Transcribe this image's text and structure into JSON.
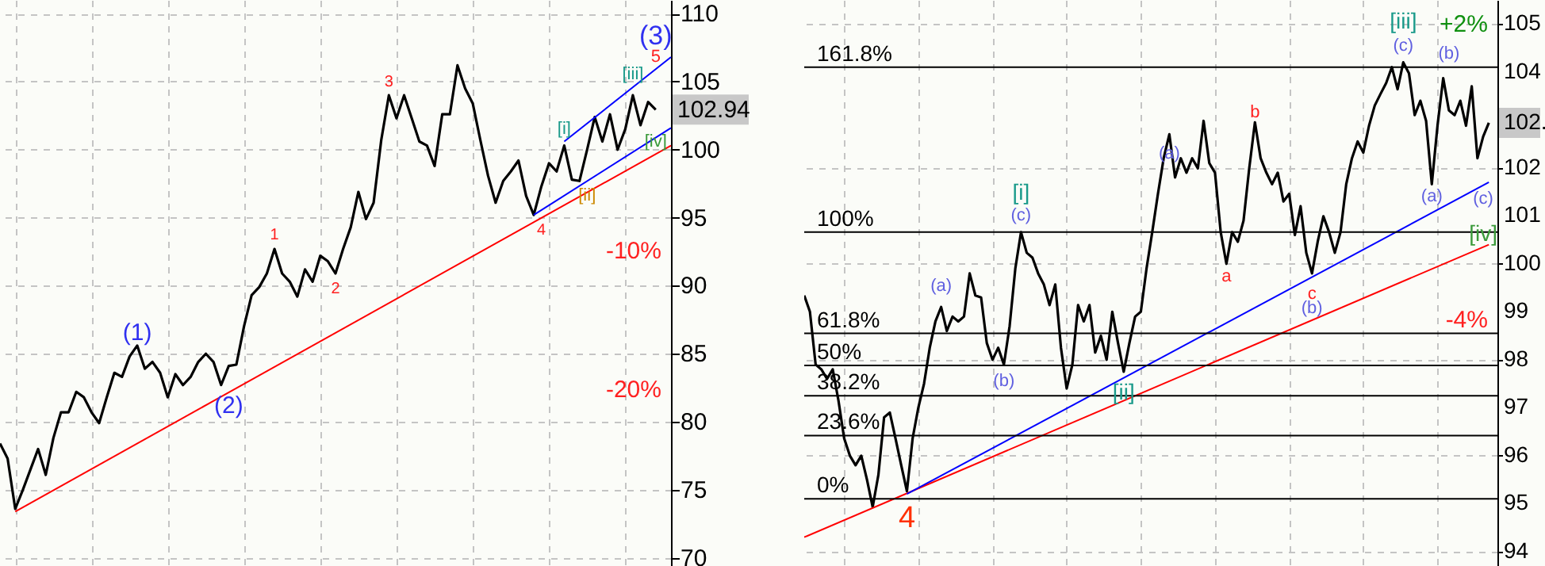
{
  "chart_data": [
    {
      "type": "line",
      "categories": [
        null,
        null,
        null,
        null,
        null,
        null,
        null,
        null,
        null,
        null,
        null,
        null,
        null,
        null,
        null,
        null,
        null,
        null,
        null,
        null,
        null,
        null,
        null,
        null,
        null,
        null,
        null,
        null,
        null,
        null,
        null,
        null,
        null,
        null,
        null,
        null,
        null,
        null,
        null,
        null,
        null,
        null,
        null,
        null,
        null,
        null,
        null,
        null,
        null,
        null,
        null,
        null,
        null,
        null,
        null,
        null,
        null,
        null,
        null,
        null,
        null,
        null,
        null,
        null,
        null,
        null,
        null,
        null,
        null,
        null,
        null,
        null,
        null,
        null,
        null,
        null,
        null,
        null,
        null,
        null,
        null,
        null,
        null,
        null,
        null,
        null,
        null,
        null,
        null
      ],
      "series": [
        {
          "color": "#000000",
          "values": [
            78.4,
            77.3,
            73.6,
            75,
            76.5,
            78,
            76.1,
            78.8,
            80.7,
            80.7,
            82.2,
            81.8,
            80.7,
            79.9,
            81.8,
            83.6,
            83.3,
            84.8,
            85.6,
            83.9,
            84.4,
            83.6,
            81.8,
            83.5,
            82.7,
            83.3,
            84.4,
            85,
            84.4,
            82.7,
            84.1,
            84.2,
            87,
            89.3,
            89.9,
            90.9,
            92.7,
            90.9,
            90.3,
            89.2,
            91.2,
            90.3,
            92.2,
            91.8,
            90.9,
            92.7,
            94.3,
            96.9,
            94.9,
            96.1,
            100.7,
            104,
            102.3,
            104,
            102.3,
            100.6,
            100.3,
            98.8,
            102.6,
            102.6,
            106.2,
            104.5,
            103.4,
            100.7,
            98.1,
            96.1,
            97.7,
            98.4,
            99.2,
            96.6,
            95.2,
            97.3,
            99,
            98.4,
            100.3,
            97.8,
            97.7,
            100,
            102.4,
            100.6,
            102.6,
            100,
            101.5,
            104,
            101.8,
            103.5,
            102.94,
            null,
            null
          ]
        },
        {
          "color": "#ff0000",
          "values": [
            null,
            null,
            73.4,
            null,
            null,
            null,
            null,
            null,
            null,
            null,
            null,
            null,
            null,
            null,
            null,
            null,
            null,
            null,
            null,
            null,
            null,
            null,
            null,
            null,
            null,
            null,
            null,
            null,
            null,
            null,
            null,
            null,
            null,
            null,
            null,
            null,
            null,
            null,
            null,
            null,
            null,
            null,
            null,
            null,
            null,
            null,
            null,
            null,
            null,
            null,
            null,
            null,
            null,
            null,
            null,
            null,
            null,
            null,
            null,
            null,
            null,
            null,
            null,
            null,
            null,
            null,
            null,
            null,
            null,
            null,
            null,
            null,
            null,
            null,
            null,
            null,
            null,
            null,
            null,
            null,
            null,
            null,
            null,
            null,
            null,
            null,
            null,
            null,
            100.3
          ]
        },
        {
          "color": "#0000ff",
          "values": [
            null,
            null,
            null,
            null,
            null,
            null,
            null,
            null,
            null,
            null,
            null,
            null,
            null,
            null,
            null,
            null,
            null,
            null,
            null,
            null,
            null,
            null,
            null,
            null,
            null,
            null,
            null,
            null,
            null,
            null,
            null,
            null,
            null,
            null,
            null,
            null,
            null,
            null,
            null,
            null,
            null,
            null,
            null,
            null,
            null,
            null,
            null,
            null,
            null,
            null,
            null,
            null,
            null,
            null,
            null,
            null,
            null,
            null,
            null,
            null,
            null,
            null,
            null,
            null,
            null,
            null,
            null,
            null,
            null,
            null,
            95.2,
            null,
            null,
            null,
            null,
            null,
            null,
            null,
            null,
            null,
            null,
            null,
            null,
            null,
            null,
            null,
            null,
            null,
            101.6
          ]
        },
        {
          "color": "#0000ff",
          "values": [
            null,
            null,
            null,
            null,
            null,
            null,
            null,
            null,
            null,
            null,
            null,
            null,
            null,
            null,
            null,
            null,
            null,
            null,
            null,
            null,
            null,
            null,
            null,
            null,
            null,
            null,
            null,
            null,
            null,
            null,
            null,
            null,
            null,
            null,
            null,
            null,
            null,
            null,
            null,
            null,
            null,
            null,
            null,
            null,
            null,
            null,
            null,
            null,
            null,
            null,
            null,
            null,
            null,
            null,
            null,
            null,
            null,
            null,
            null,
            null,
            null,
            null,
            null,
            null,
            null,
            null,
            null,
            null,
            null,
            null,
            null,
            null,
            null,
            null,
            100.6,
            null,
            null,
            null,
            null,
            null,
            null,
            null,
            null,
            null,
            null,
            null,
            null,
            null,
            106.8
          ]
        }
      ],
      "ylim": [
        69.4,
        111
      ],
      "yticks": [
        70,
        75,
        80,
        85,
        90,
        95,
        100,
        105,
        110
      ],
      "grid": true,
      "tick_labels": "y",
      "annotations": [
        "(1)",
        "(2)",
        "1",
        "2",
        "3",
        "4",
        "5",
        "(3)",
        "[i]",
        "[ii]",
        "[iii]",
        "[iv]",
        "-10%",
        "-20%",
        "102.94"
      ]
    },
    {
      "type": "line",
      "categories": [
        null,
        null,
        null,
        null,
        null,
        null,
        null,
        null,
        null,
        null,
        null,
        null,
        null,
        null,
        null,
        null,
        null,
        null,
        null,
        null,
        null,
        null,
        null,
        null,
        null,
        null,
        null,
        null,
        null,
        null,
        null,
        null,
        null,
        null,
        null,
        null,
        null,
        null,
        null,
        null,
        null,
        null,
        null,
        null,
        null,
        null,
        null,
        null,
        null,
        null,
        null,
        null,
        null,
        null,
        null,
        null,
        null,
        null,
        null,
        null,
        null,
        null,
        null,
        null,
        null,
        null,
        null,
        null,
        null,
        null,
        null,
        null,
        null,
        null,
        null,
        null,
        null,
        null,
        null,
        null,
        null,
        null,
        null,
        null,
        null,
        null,
        null,
        null,
        null,
        null,
        null,
        null,
        null,
        null,
        null,
        null,
        null,
        null,
        null,
        null,
        null,
        null,
        null,
        null,
        null,
        null,
        null,
        null,
        null,
        null,
        null,
        null,
        null,
        null,
        null,
        null,
        null,
        null,
        null,
        null,
        null
      ],
      "series": [
        {
          "color": "#000000",
          "values": [
            99.34,
            99.0,
            97.9,
            97.8,
            97.6,
            97.8,
            97.15,
            96.36,
            96.0,
            95.8,
            96.0,
            95.5,
            94.93,
            95.6,
            96.8,
            96.9,
            96.36,
            95.8,
            95.26,
            96.36,
            97.0,
            97.5,
            98.25,
            98.8,
            99.1,
            98.6,
            98.9,
            98.8,
            98.9,
            99.8,
            99.34,
            99.3,
            98.35,
            98.0,
            98.25,
            97.9,
            98.7,
            99.9,
            100.66,
            100.23,
            100.13,
            99.8,
            99.57,
            99.14,
            99.57,
            98.25,
            97.4,
            97.9,
            99.14,
            98.8,
            99.14,
            98.15,
            98.5,
            98.0,
            99.0,
            98.35,
            97.75,
            98.35,
            98.9,
            99.0,
            99.9,
            100.66,
            101.46,
            102.2,
            102.7,
            101.8,
            102.2,
            101.9,
            102.2,
            101.99,
            102.98,
            102.1,
            101.9,
            100.66,
            100.0,
            100.66,
            100.46,
            100.9,
            101.99,
            102.95,
            102.2,
            101.9,
            101.66,
            101.9,
            101.3,
            101.46,
            100.6,
            101.2,
            100.23,
            99.8,
            100.46,
            100.99,
            100.66,
            100.23,
            100.66,
            101.66,
            102.2,
            102.55,
            102.32,
            102.88,
            103.3,
            103.54,
            103.77,
            104.1,
            103.64,
            104.2,
            103.97,
            103.1,
            103.4,
            102.98,
            101.66,
            102.88,
            103.87,
            103.2,
            103.1,
            103.4,
            102.88,
            103.7,
            102.2,
            102.65,
            102.94
          ]
        },
        {
          "color": "#ff0000",
          "values": [
            94.3,
            null,
            null,
            null,
            null,
            null,
            null,
            null,
            null,
            null,
            null,
            null,
            null,
            null,
            null,
            null,
            null,
            null,
            null,
            null,
            null,
            null,
            null,
            null,
            null,
            null,
            null,
            null,
            null,
            null,
            null,
            null,
            null,
            null,
            null,
            null,
            null,
            null,
            null,
            null,
            null,
            null,
            null,
            null,
            null,
            null,
            null,
            null,
            null,
            null,
            null,
            null,
            null,
            null,
            null,
            null,
            null,
            null,
            null,
            null,
            null,
            null,
            null,
            null,
            null,
            null,
            null,
            null,
            null,
            null,
            null,
            null,
            null,
            null,
            null,
            null,
            null,
            null,
            null,
            null,
            null,
            null,
            null,
            null,
            null,
            null,
            null,
            null,
            null,
            null,
            null,
            null,
            null,
            null,
            null,
            null,
            null,
            null,
            null,
            null,
            null,
            null,
            null,
            null,
            null,
            null,
            null,
            null,
            null,
            null,
            null,
            null,
            null,
            null,
            null,
            null,
            null,
            null,
            null,
            null,
            100.4
          ]
        },
        {
          "color": "#0000ff",
          "values": [
            null,
            null,
            null,
            null,
            null,
            null,
            null,
            null,
            null,
            null,
            null,
            null,
            null,
            null,
            null,
            null,
            null,
            null,
            95.2,
            null,
            null,
            null,
            null,
            null,
            null,
            null,
            null,
            null,
            null,
            null,
            null,
            null,
            null,
            null,
            null,
            null,
            null,
            null,
            null,
            null,
            null,
            null,
            null,
            null,
            null,
            null,
            null,
            null,
            null,
            null,
            null,
            null,
            null,
            null,
            null,
            null,
            null,
            null,
            null,
            null,
            null,
            null,
            null,
            null,
            null,
            null,
            null,
            null,
            null,
            null,
            null,
            null,
            null,
            null,
            null,
            null,
            null,
            null,
            null,
            null,
            null,
            null,
            null,
            null,
            null,
            null,
            null,
            null,
            null,
            null,
            null,
            null,
            null,
            null,
            null,
            null,
            null,
            null,
            null,
            null,
            null,
            null,
            null,
            null,
            null,
            null,
            null,
            null,
            null,
            null,
            null,
            null,
            null,
            null,
            null,
            null,
            null,
            null,
            null,
            null,
            101.7
          ]
        }
      ],
      "ylim": [
        93.7,
        105.5
      ],
      "yticks": [
        94,
        95,
        96,
        97,
        98,
        99,
        100,
        101,
        102,
        104,
        105
      ],
      "grid": true,
      "tick_labels": "y",
      "ref_lines": [
        {
          "axis": "y",
          "value": 104.1
        },
        {
          "axis": "y",
          "value": 100.66
        },
        {
          "axis": "y",
          "value": 98.55
        },
        {
          "axis": "y",
          "value": 97.88
        },
        {
          "axis": "y",
          "value": 97.25
        },
        {
          "axis": "y",
          "value": 96.42
        },
        {
          "axis": "y",
          "value": 95.1
        }
      ],
      "annotations": [
        "161.8%",
        "100%",
        "61.8%",
        "50%",
        "38.2%",
        "23.6%",
        "0%",
        "(a)",
        "(b)",
        "(c)",
        "[i]",
        "4",
        "[ii]",
        "(a)",
        "a",
        "b",
        "c",
        "(b)",
        "(c)",
        "[iii]",
        "(a)",
        "(b)",
        "(c)",
        "[iv]",
        "+2%",
        "-4%",
        "102."
      ]
    }
  ]
}
